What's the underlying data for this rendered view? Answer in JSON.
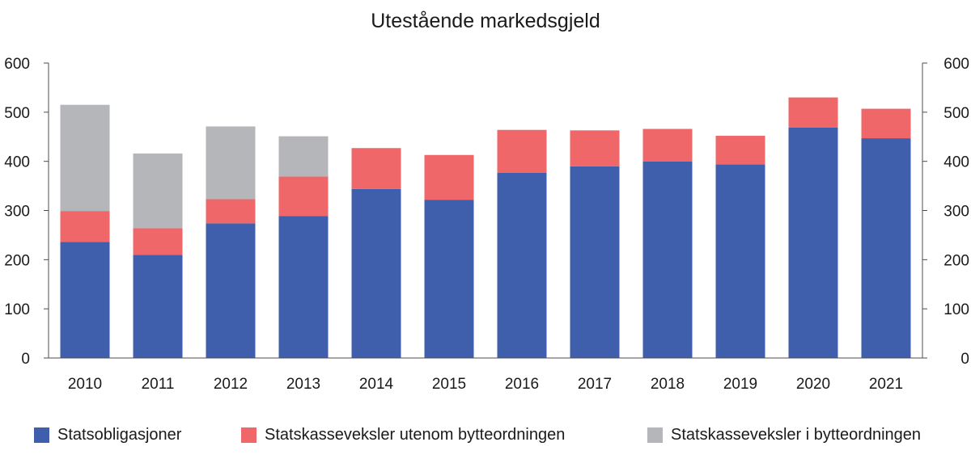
{
  "chart_data": {
    "type": "bar",
    "stacked": true,
    "title": "Utestående markedsgjeld",
    "categories": [
      "2010",
      "2011",
      "2012",
      "2013",
      "2014",
      "2015",
      "2016",
      "2017",
      "2018",
      "2019",
      "2020",
      "2021"
    ],
    "series": [
      {
        "name": "Statsobligasjoner",
        "color": "#3f5fad",
        "values": [
          236,
          210,
          274,
          289,
          344,
          322,
          377,
          390,
          400,
          394,
          469,
          447
        ]
      },
      {
        "name": "Statskasseveksler utenom bytteordningen",
        "color": "#f0676a",
        "values": [
          63,
          54,
          49,
          80,
          83,
          91,
          87,
          73,
          66,
          58,
          61,
          60
        ]
      },
      {
        "name": "Statskasseveksler i bytteordningen",
        "color": "#b5b6ba",
        "values": [
          216,
          152,
          148,
          82,
          0,
          0,
          0,
          0,
          0,
          0,
          0,
          0
        ]
      }
    ],
    "ylim": [
      0,
      600
    ],
    "yticks": [
      0,
      100,
      200,
      300,
      400,
      500,
      600
    ],
    "secondary_yticks": [
      0,
      100,
      200,
      300,
      400,
      500,
      600
    ],
    "grid": false,
    "legend_position": "bottom"
  }
}
